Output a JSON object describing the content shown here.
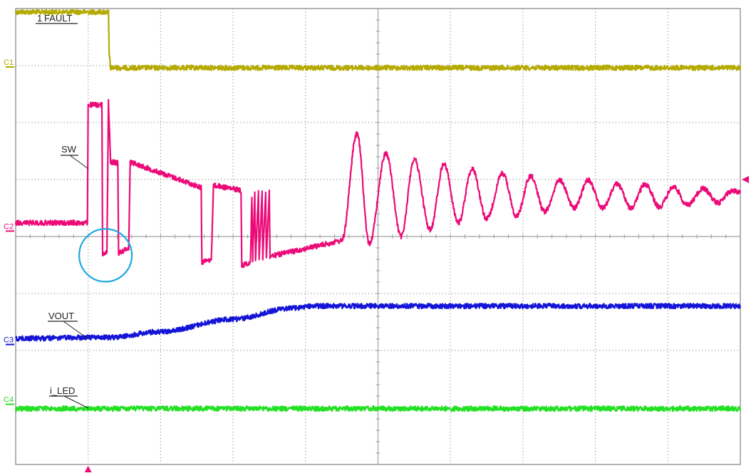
{
  "chart_data": {
    "type": "line",
    "title": "",
    "xlabel": "",
    "ylabel": "",
    "x_divisions": 10,
    "y_divisions": 8,
    "xlim": [
      0,
      10
    ],
    "ylim": [
      -4,
      4
    ],
    "units": "divisions",
    "grid": true,
    "trigger_position_div": 1.0,
    "annotation_circle": {
      "label": "",
      "color": "#1ea8e0",
      "center_div": [
        1.24,
        -0.33
      ]
    },
    "series": [
      {
        "channel": "C1",
        "name": "FAULT",
        "prefix": "1",
        "color": "#b5aa00",
        "ground_div": 3.0,
        "segments": [
          {
            "interp": "linear",
            "points": [
              [
                0,
                3.94
              ],
              [
                1.28,
                3.94
              ],
              [
                1.29,
                3.2
              ],
              [
                1.31,
                2.96
              ],
              [
                10,
                2.96
              ]
            ]
          }
        ]
      },
      {
        "channel": "C2",
        "name": "SW",
        "color": "#ec0a78",
        "ground_div": 0.12,
        "level_marker": true,
        "segments": [
          {
            "interp": "linear",
            "points": [
              [
                0,
                0.24
              ],
              [
                0.99,
                0.24
              ],
              [
                1.0,
                2.31
              ],
              [
                1.19,
                2.31
              ],
              [
                1.2,
                -0.31
              ],
              [
                1.26,
                -0.25
              ],
              [
                1.28,
                2.36
              ],
              [
                1.31,
                1.31
              ],
              [
                1.41,
                1.29
              ],
              [
                1.42,
                -0.29
              ],
              [
                1.56,
                -0.2
              ],
              [
                1.58,
                1.31
              ],
              [
                2.56,
                0.86
              ],
              [
                2.57,
                -0.45
              ],
              [
                2.7,
                -0.4
              ],
              [
                2.73,
                0.9
              ],
              [
                3.11,
                0.81
              ],
              [
                3.12,
                -0.51
              ],
              [
                3.24,
                -0.45
              ],
              [
                3.26,
                0.7
              ],
              [
                3.27,
                -0.4
              ],
              [
                3.3,
                0.75
              ],
              [
                3.31,
                -0.4
              ],
              [
                3.35,
                0.78
              ],
              [
                3.36,
                -0.4
              ],
              [
                3.4,
                0.78
              ],
              [
                3.41,
                -0.38
              ],
              [
                3.45,
                0.78
              ],
              [
                3.46,
                -0.36
              ],
              [
                3.5,
                0.78
              ],
              [
                3.51,
                -0.35
              ],
              [
                4.5,
                -0.07
              ]
            ]
          },
          {
            "interp": "smooth",
            "points": [
              [
                4.5,
                -0.07
              ],
              [
                4.71,
                1.8
              ],
              [
                4.88,
                -0.12
              ],
              [
                5.11,
                1.46
              ],
              [
                5.32,
                0.0
              ],
              [
                5.5,
                1.36
              ],
              [
                5.72,
                0.12
              ],
              [
                5.91,
                1.27
              ],
              [
                6.11,
                0.24
              ],
              [
                6.3,
                1.19
              ],
              [
                6.5,
                0.31
              ],
              [
                6.72,
                1.11
              ],
              [
                6.91,
                0.36
              ],
              [
                7.11,
                1.06
              ],
              [
                7.3,
                0.44
              ],
              [
                7.51,
                0.99
              ],
              [
                7.71,
                0.5
              ],
              [
                7.9,
                0.99
              ],
              [
                8.1,
                0.5
              ],
              [
                8.3,
                0.92
              ],
              [
                8.49,
                0.5
              ],
              [
                8.69,
                0.92
              ],
              [
                8.88,
                0.52
              ],
              [
                9.08,
                0.87
              ],
              [
                9.27,
                0.55
              ],
              [
                9.49,
                0.84
              ],
              [
                9.69,
                0.59
              ],
              [
                9.88,
                0.8
              ],
              [
                10,
                0.78
              ]
            ]
          }
        ]
      },
      {
        "channel": "C3",
        "name": "VOUT",
        "color": "#1414d8",
        "ground_div": -1.87,
        "segments": [
          {
            "interp": "smooth",
            "points": [
              [
                0,
                -1.79
              ],
              [
                1.3,
                -1.77
              ],
              [
                2.0,
                -1.67
              ],
              [
                3.0,
                -1.45
              ],
              [
                3.8,
                -1.26
              ],
              [
                4.1,
                -1.22
              ],
              [
                10,
                -1.22
              ]
            ]
          }
        ]
      },
      {
        "channel": "C4",
        "name": "i_LED",
        "color": "#22e022",
        "ground_div": -2.92,
        "segments": [
          {
            "interp": "linear",
            "points": [
              [
                0,
                -3.02
              ],
              [
                10,
                -3.02
              ]
            ]
          }
        ]
      }
    ]
  }
}
